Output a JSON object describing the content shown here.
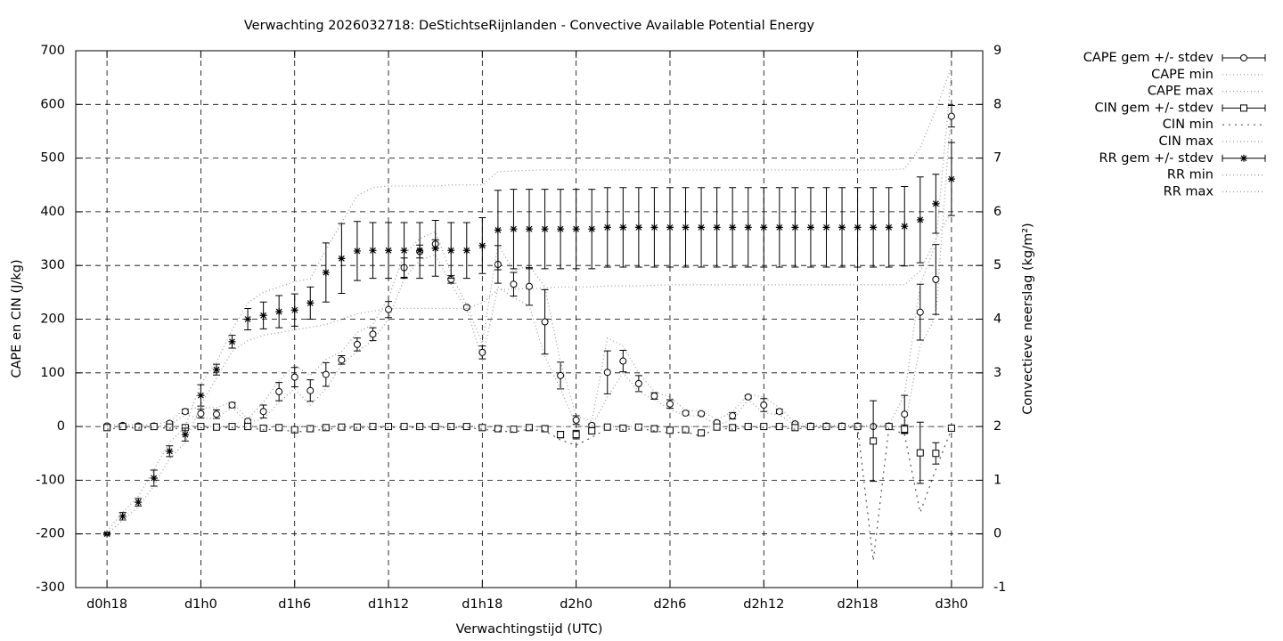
{
  "chart_data": {
    "type": "errorbar",
    "title": "Verwachting 2026032718: DeStichtseRijnlanden - Convective Available Potential Energy",
    "xlabel": "Verwachtingstijd (UTC)",
    "ylabel": "CAPE en CIN (J/kg)",
    "y2label": "Convectieve neerslag (kg/m²)",
    "grid": true,
    "legend": "outside-right",
    "xlim": [
      16,
      74
    ],
    "xticks": [
      {
        "value": 18,
        "label": "d0h18"
      },
      {
        "value": 24,
        "label": "d1h0"
      },
      {
        "value": 30,
        "label": "d1h6"
      },
      {
        "value": 36,
        "label": "d1h12"
      },
      {
        "value": 42,
        "label": "d1h18"
      },
      {
        "value": 48,
        "label": "d2h0"
      },
      {
        "value": 54,
        "label": "d2h6"
      },
      {
        "value": 60,
        "label": "d2h12"
      },
      {
        "value": 66,
        "label": "d2h18"
      },
      {
        "value": 72,
        "label": "d3h0"
      }
    ],
    "ylim": [
      -300,
      700
    ],
    "yticks": [
      -300,
      -200,
      -100,
      0,
      100,
      200,
      300,
      400,
      500,
      600,
      700
    ],
    "y2lim": [
      -1,
      9
    ],
    "y2ticks": [
      -1,
      0,
      1,
      2,
      3,
      4,
      5,
      6,
      7,
      8,
      9
    ],
    "x": [
      18,
      19,
      20,
      21,
      22,
      23,
      24,
      25,
      26,
      27,
      28,
      29,
      30,
      31,
      32,
      33,
      34,
      35,
      36,
      37,
      38,
      39,
      40,
      41,
      42,
      43,
      44,
      45,
      46,
      47,
      48,
      49,
      50,
      51,
      52,
      53,
      54,
      55,
      56,
      57,
      58,
      59,
      60,
      61,
      62,
      63,
      64,
      65,
      66,
      67,
      68,
      69,
      70,
      71,
      72
    ],
    "series": [
      {
        "name": "CAPE gem +/- stdev",
        "color": "#000000",
        "marker": "circle",
        "values": [
          1,
          2,
          1,
          1,
          6,
          28,
          24,
          23,
          40,
          10,
          28,
          65,
          92,
          67,
          97,
          124,
          153,
          172,
          218,
          296,
          326,
          340,
          274,
          222,
          138,
          302,
          265,
          261,
          195,
          95,
          12,
          2,
          101,
          122,
          80,
          57,
          42,
          25,
          24,
          7,
          20,
          55,
          40,
          28,
          5,
          1,
          1,
          1,
          1,
          0,
          1,
          23,
          213,
          274,
          578
        ],
        "errors": [
          2,
          2,
          2,
          2,
          3,
          4,
          8,
          8,
          5,
          3,
          12,
          17,
          18,
          20,
          22,
          8,
          12,
          12,
          15,
          18,
          12,
          8,
          7,
          3,
          12,
          35,
          22,
          35,
          60,
          25,
          8,
          3,
          40,
          20,
          15,
          6,
          8,
          3,
          3,
          3,
          6,
          3,
          12,
          4,
          2,
          1,
          1,
          1,
          1,
          0,
          1,
          35,
          52,
          65,
          20
        ]
      },
      {
        "name": "CAPE min",
        "color": "#999999",
        "dash": "1 3",
        "values": [
          0,
          0,
          0,
          0,
          2,
          22,
          15,
          15,
          35,
          7,
          15,
          45,
          70,
          40,
          70,
          115,
          140,
          160,
          200,
          275,
          310,
          320,
          265,
          218,
          125,
          260,
          240,
          225,
          130,
          70,
          2,
          0,
          55,
          100,
          65,
          50,
          32,
          20,
          20,
          3,
          12,
          50,
          25,
          22,
          2,
          0,
          0,
          0,
          0,
          0,
          0,
          0,
          150,
          205,
          600
        ]
      },
      {
        "name": "CAPE max",
        "color": "#999999",
        "dash": "1 3",
        "values": [
          3,
          4,
          3,
          3,
          10,
          33,
          35,
          35,
          46,
          14,
          45,
          85,
          115,
          95,
          125,
          140,
          175,
          190,
          240,
          320,
          350,
          363,
          285,
          226,
          155,
          340,
          290,
          300,
          260,
          120,
          20,
          10,
          165,
          150,
          100,
          65,
          55,
          30,
          30,
          12,
          28,
          60,
          55,
          35,
          8,
          2,
          2,
          2,
          2,
          2,
          2,
          60,
          265,
          340,
          660
        ]
      },
      {
        "name": "CIN gem +/- stdev",
        "color": "#000000",
        "marker": "square",
        "values": [
          -2,
          0,
          -1,
          0,
          -1,
          -2,
          0,
          -1,
          0,
          0,
          -3,
          -2,
          -6,
          -4,
          -2,
          -1,
          -1,
          0,
          0,
          0,
          0,
          0,
          0,
          0,
          -2,
          -4,
          -5,
          -2,
          -4,
          -15,
          -15,
          -8,
          -1,
          -3,
          -1,
          -4,
          -7,
          -6,
          -12,
          -1,
          -2,
          0,
          0,
          0,
          -2,
          0,
          0,
          0,
          0,
          -27,
          0,
          -5,
          -49,
          -50,
          -3
        ],
        "errors": [
          2,
          2,
          2,
          2,
          2,
          2,
          2,
          2,
          2,
          2,
          2,
          2,
          2,
          2,
          2,
          2,
          2,
          2,
          2,
          2,
          2,
          2,
          2,
          2,
          2,
          2,
          2,
          2,
          2,
          6,
          8,
          6,
          2,
          2,
          2,
          2,
          2,
          2,
          3,
          2,
          2,
          2,
          2,
          2,
          2,
          2,
          2,
          2,
          2,
          75,
          2,
          8,
          57,
          20,
          2
        ]
      },
      {
        "name": "CIN min",
        "color": "#555555",
        "dash": "2 5",
        "values": [
          -5,
          -2,
          -3,
          -2,
          -3,
          -5,
          -2,
          -3,
          -2,
          -2,
          -6,
          -5,
          -10,
          -8,
          -5,
          -3,
          -3,
          -2,
          -2,
          -2,
          -2,
          -2,
          -2,
          -2,
          -5,
          -8,
          -10,
          -5,
          -8,
          -25,
          -35,
          -20,
          -4,
          -6,
          -3,
          -8,
          -12,
          -10,
          -18,
          -3,
          -5,
          -2,
          -2,
          -2,
          -5,
          -2,
          -2,
          -2,
          -2,
          -250,
          -2,
          -15,
          -160,
          -80,
          -5
        ]
      },
      {
        "name": "CIN max",
        "color": "#999999",
        "dash": "1 3",
        "values": [
          0,
          0,
          0,
          0,
          0,
          0,
          0,
          0,
          0,
          0,
          0,
          0,
          0,
          0,
          0,
          0,
          0,
          0,
          0,
          0,
          0,
          0,
          0,
          0,
          0,
          0,
          0,
          0,
          0,
          0,
          0,
          0,
          0,
          0,
          0,
          0,
          0,
          0,
          0,
          0,
          0,
          0,
          0,
          0,
          0,
          0,
          0,
          0,
          0,
          0,
          0,
          0,
          0,
          0,
          0
        ]
      },
      {
        "name": "RR gem +/- stdev",
        "color": "#000000",
        "marker": "asterisk",
        "axis": "y2",
        "values": [
          0,
          0.33,
          0.59,
          1.04,
          1.54,
          1.85,
          2.58,
          3.06,
          3.58,
          4.0,
          4.07,
          4.14,
          4.17,
          4.3,
          4.87,
          5.13,
          5.27,
          5.28,
          5.28,
          5.28,
          5.28,
          5.32,
          5.28,
          5.28,
          5.37,
          5.66,
          5.68,
          5.68,
          5.68,
          5.68,
          5.68,
          5.68,
          5.71,
          5.71,
          5.71,
          5.71,
          5.71,
          5.71,
          5.71,
          5.71,
          5.71,
          5.71,
          5.71,
          5.71,
          5.71,
          5.71,
          5.71,
          5.71,
          5.71,
          5.71,
          5.71,
          5.73,
          5.85,
          6.15,
          6.61
        ],
        "errors": [
          0.02,
          0.07,
          0.07,
          0.15,
          0.1,
          0.12,
          0.2,
          0.1,
          0.12,
          0.2,
          0.25,
          0.3,
          0.3,
          0.3,
          0.55,
          0.65,
          0.55,
          0.52,
          0.52,
          0.52,
          0.52,
          0.52,
          0.52,
          0.52,
          0.52,
          0.74,
          0.74,
          0.74,
          0.74,
          0.74,
          0.74,
          0.74,
          0.74,
          0.74,
          0.74,
          0.74,
          0.74,
          0.74,
          0.74,
          0.74,
          0.74,
          0.74,
          0.74,
          0.74,
          0.74,
          0.74,
          0.74,
          0.74,
          0.74,
          0.74,
          0.74,
          0.74,
          0.8,
          0.55,
          0.68
        ]
      },
      {
        "name": "RR min",
        "color": "#999999",
        "dash": "1 3",
        "axis": "y2",
        "values": [
          0,
          0.25,
          0.5,
          0.9,
          1.4,
          1.7,
          2.4,
          2.9,
          3.4,
          3.6,
          3.7,
          3.75,
          3.8,
          3.85,
          3.9,
          4.0,
          4.1,
          4.15,
          4.2,
          4.2,
          4.2,
          4.2,
          4.2,
          4.2,
          4.3,
          4.55,
          4.56,
          4.57,
          4.58,
          4.6,
          4.6,
          4.6,
          4.62,
          4.62,
          4.62,
          4.63,
          4.64,
          4.64,
          4.64,
          4.64,
          4.64,
          4.64,
          4.64,
          4.64,
          4.64,
          4.64,
          4.64,
          4.64,
          4.64,
          4.64,
          4.64,
          4.64,
          4.9,
          5.5,
          6.0
        ]
      },
      {
        "name": "RR max",
        "color": "#999999",
        "dash": "1 3",
        "axis": "y2",
        "values": [
          0.05,
          0.4,
          0.7,
          1.2,
          1.7,
          2.0,
          2.8,
          3.2,
          3.8,
          4.3,
          4.5,
          4.6,
          4.7,
          4.75,
          5.3,
          5.8,
          6.3,
          6.45,
          6.48,
          6.48,
          6.48,
          6.48,
          6.5,
          6.5,
          6.5,
          6.75,
          6.76,
          6.77,
          6.78,
          6.78,
          6.78,
          6.78,
          6.78,
          6.78,
          6.78,
          6.78,
          6.78,
          6.78,
          6.78,
          6.78,
          6.78,
          6.78,
          6.78,
          6.78,
          6.78,
          6.78,
          6.78,
          6.78,
          6.78,
          6.78,
          6.78,
          6.8,
          7.2,
          7.9,
          8.7
        ]
      }
    ]
  }
}
